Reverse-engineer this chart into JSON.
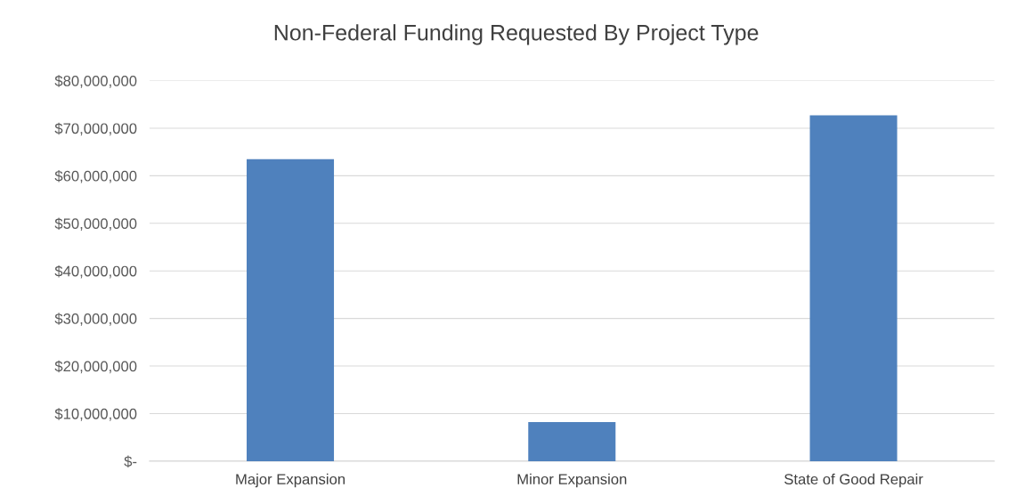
{
  "chart_data": {
    "type": "bar",
    "title": "Non-Federal Funding Requested By Project Type",
    "categories": [
      "Major Expansion",
      "Minor Expansion",
      "State of Good Repair"
    ],
    "values": [
      63500000,
      8200000,
      72700000
    ],
    "color": "#4f81bd",
    "ylim": [
      0,
      80000000
    ],
    "yticks": [
      {
        "value": 0,
        "label": "$-"
      },
      {
        "value": 10000000,
        "label": "$10,000,000"
      },
      {
        "value": 20000000,
        "label": "$20,000,000"
      },
      {
        "value": 30000000,
        "label": "$30,000,000"
      },
      {
        "value": 40000000,
        "label": "$40,000,000"
      },
      {
        "value": 50000000,
        "label": "$50,000,000"
      },
      {
        "value": 60000000,
        "label": "$60,000,000"
      },
      {
        "value": 70000000,
        "label": "$70,000,000"
      },
      {
        "value": 80000000,
        "label": "$80,000,000"
      }
    ],
    "grid": "y",
    "legend": false
  }
}
